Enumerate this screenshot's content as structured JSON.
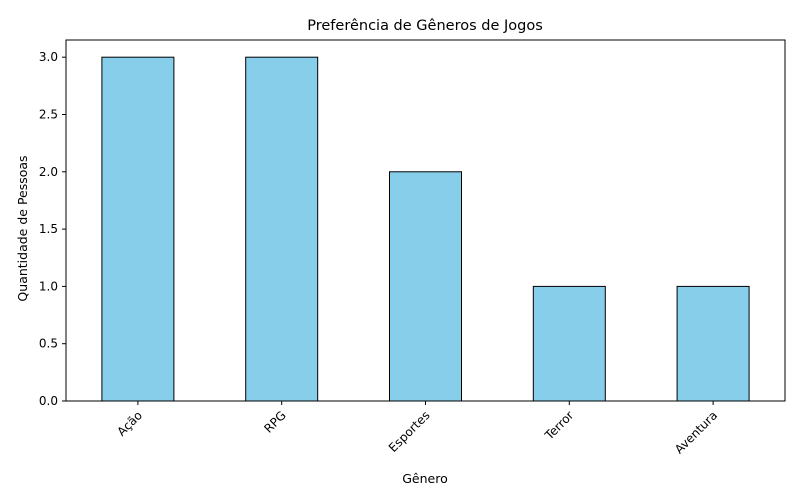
{
  "chart_data": {
    "type": "bar",
    "title": "Preferência de Gêneros de Jogos",
    "xlabel": "Gênero",
    "ylabel": "Quantidade de Pessoas",
    "categories": [
      "Ação",
      "RPG",
      "Esportes",
      "Terror",
      "Aventura"
    ],
    "values": [
      3,
      3,
      2,
      1,
      1
    ],
    "ylim": [
      0,
      3.15
    ],
    "yticks": [
      "0.0",
      "0.5",
      "1.0",
      "1.5",
      "2.0",
      "2.5",
      "3.0"
    ],
    "bar_color": "#87CEEB",
    "edge_color": "#000000",
    "grid": false,
    "legend": "none"
  }
}
